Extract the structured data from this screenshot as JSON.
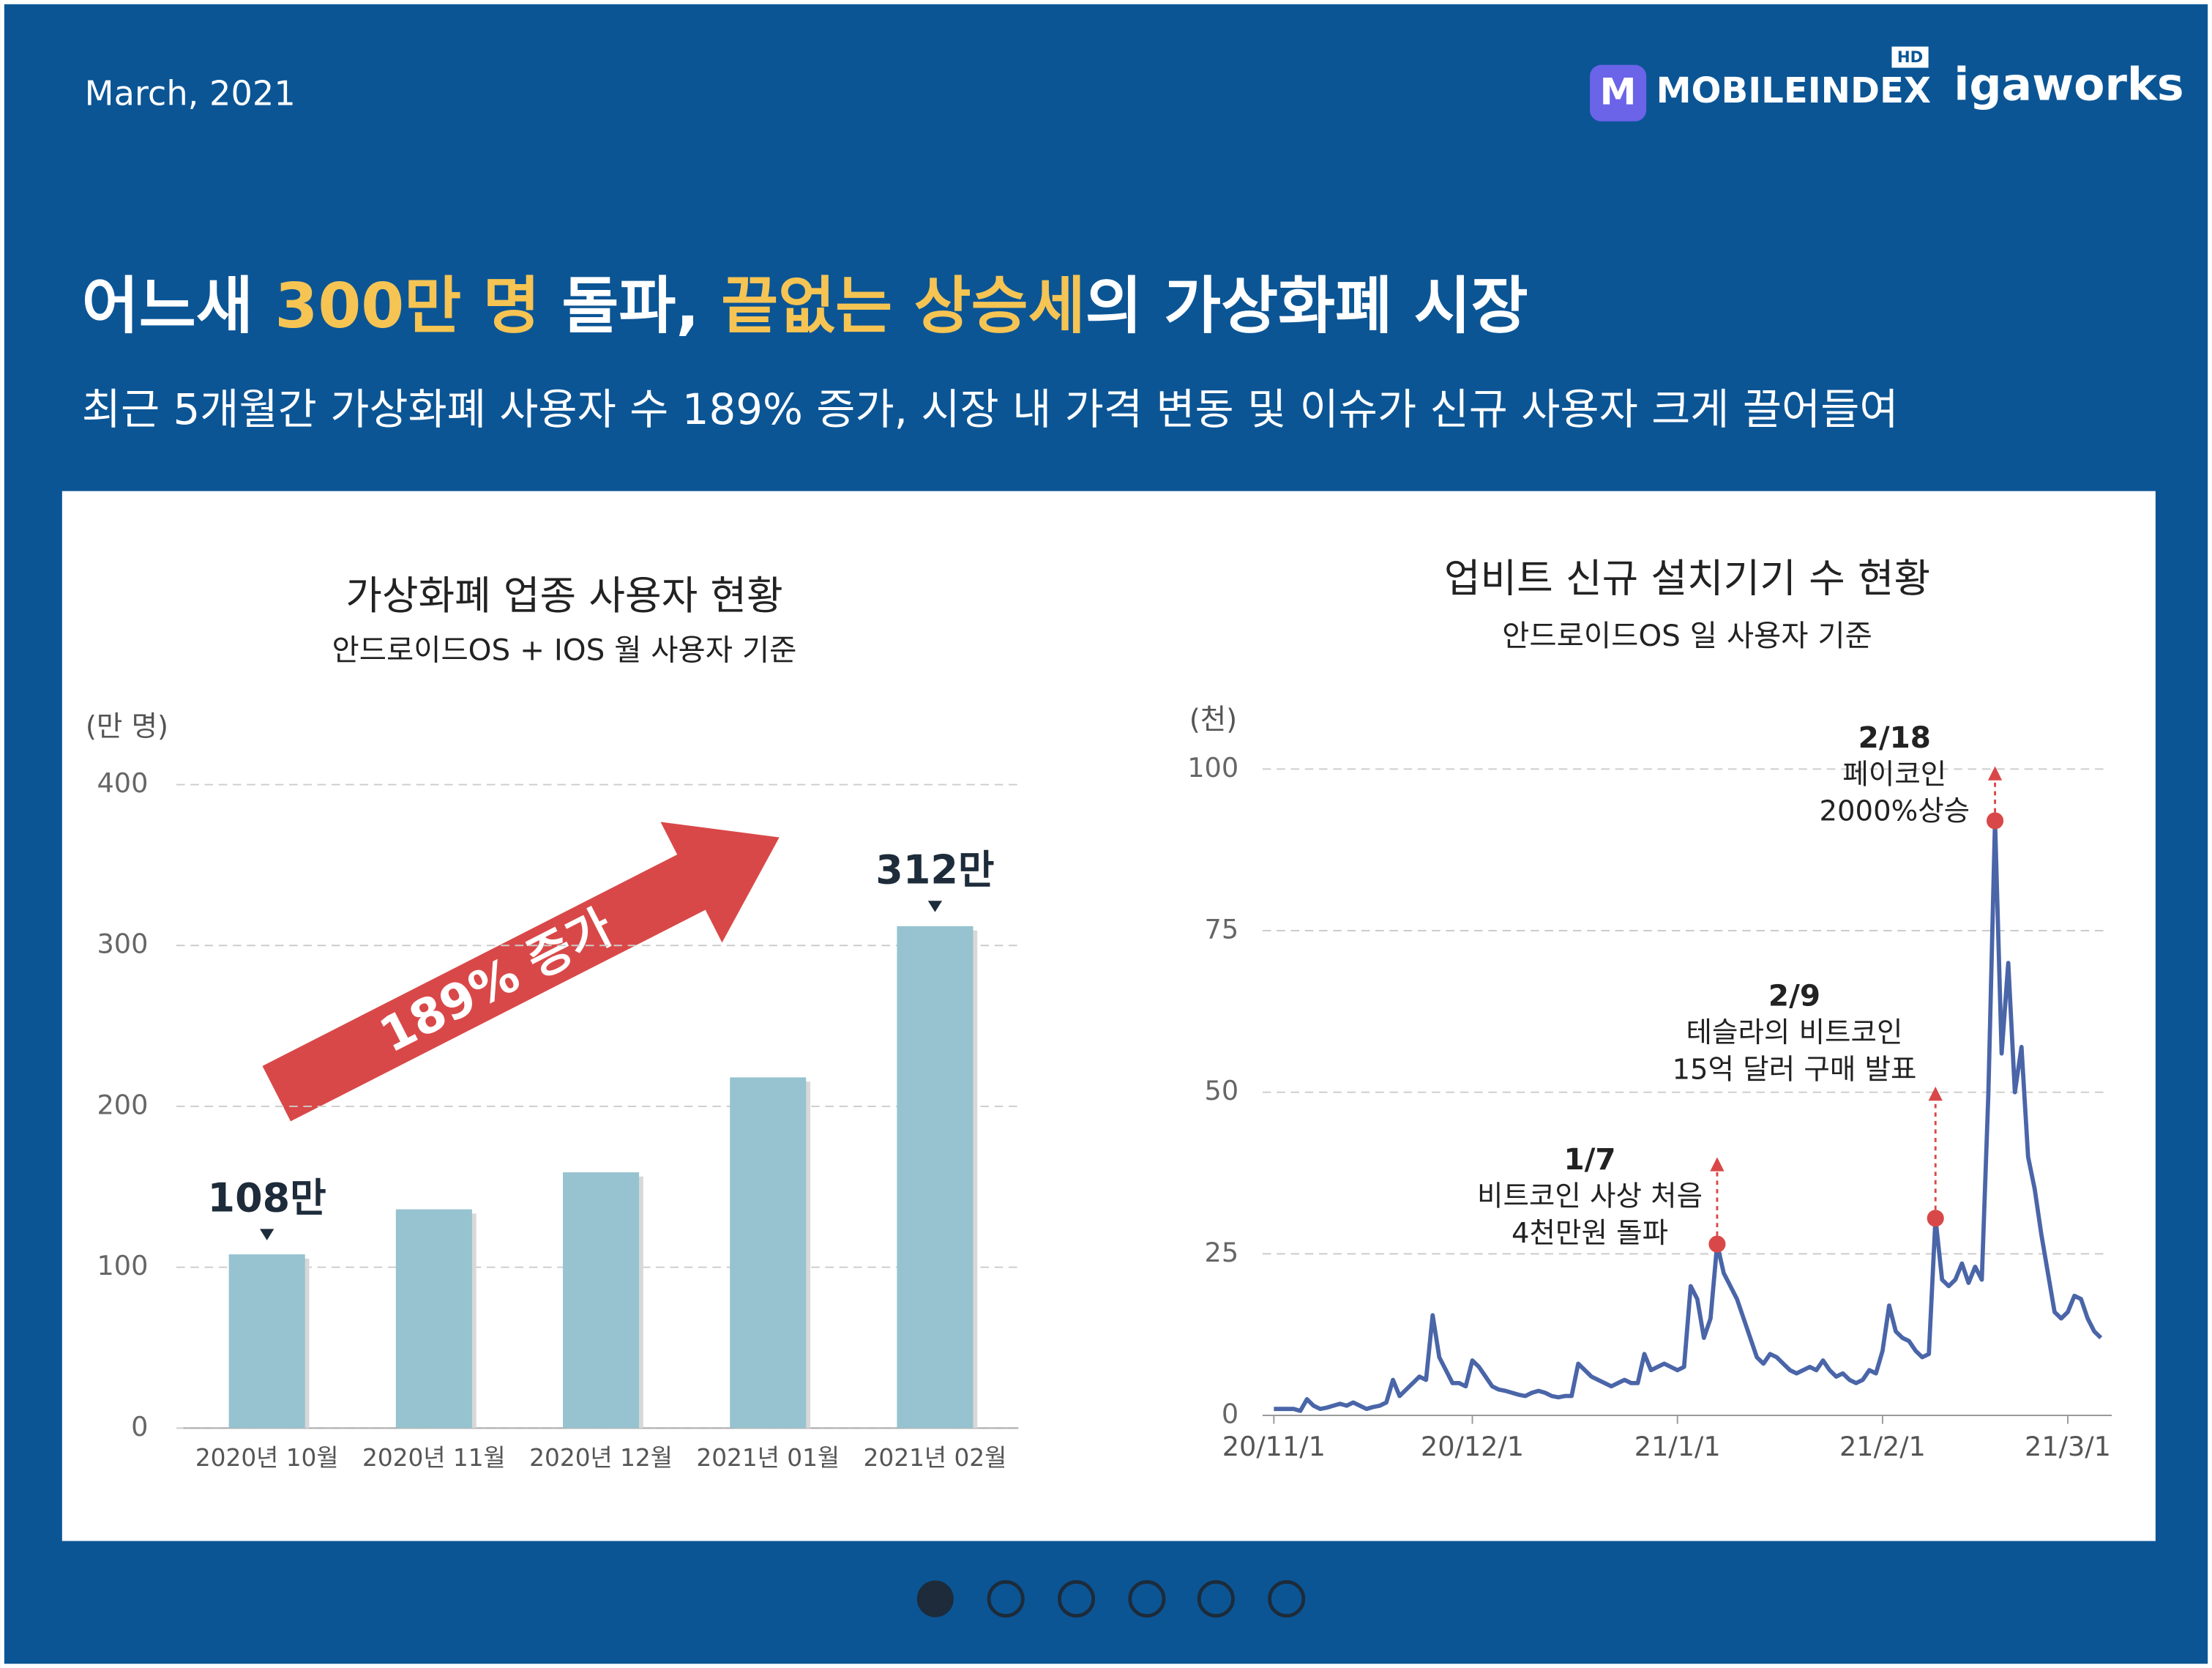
{
  "header": {
    "date": "March, 2021",
    "logo": {
      "icon": "M",
      "name": "MOBILEINDEX",
      "badge": "HD",
      "company": "igaworks"
    },
    "title": [
      "어느새 ",
      "300만 명",
      " 돌파, ",
      "끝없는 상승세",
      "의 가상화폐 시장"
    ],
    "subtitle": "최근 5개월간 가상화폐 사용자 수 189% 증가, 시장 내 가격 변동 및 이슈가 신규 사용자 크게 끌어들여"
  },
  "chart_data": [
    {
      "type": "bar",
      "title": "가상화폐 업종 사용자 현황",
      "subtitle": "안드로이드OS + IOS 월 사용자 기준",
      "y_unit": "(만 명)",
      "categories": [
        "2020년 10월",
        "2020년 11월",
        "2020년 12월",
        "2021년 01월",
        "2021년 02월"
      ],
      "values": [
        108,
        136,
        159,
        218,
        312
      ],
      "value_labels": [
        "108만",
        null,
        null,
        null,
        "312만"
      ],
      "color": "#96c3cf",
      "ylim": [
        0,
        400
      ],
      "yticks": [
        0,
        100,
        200,
        300,
        400
      ],
      "grid": true,
      "annotation": "189% 증가"
    },
    {
      "type": "line",
      "title": "업비트 신규 설치기기 수 현황",
      "subtitle": "안드로이드OS 일 사용자 기준",
      "y_unit": "(천)",
      "color": "#4a65a8",
      "x": [
        "20/11/1",
        "20/11/2",
        "20/11/3",
        "20/11/4",
        "20/11/5",
        "20/11/6",
        "20/11/7",
        "20/11/8",
        "20/11/9",
        "20/11/10",
        "20/11/11",
        "20/11/12",
        "20/11/13",
        "20/11/14",
        "20/11/15",
        "20/11/16",
        "20/11/17",
        "20/11/18",
        "20/11/19",
        "20/11/20",
        "20/11/21",
        "20/11/22",
        "20/11/23",
        "20/11/24",
        "20/11/25",
        "20/11/26",
        "20/11/27",
        "20/11/28",
        "20/11/29",
        "20/11/30",
        "20/12/1",
        "20/12/2",
        "20/12/3",
        "20/12/4",
        "20/12/5",
        "20/12/6",
        "20/12/7",
        "20/12/8",
        "20/12/9",
        "20/12/10",
        "20/12/11",
        "20/12/12",
        "20/12/13",
        "20/12/14",
        "20/12/15",
        "20/12/16",
        "20/12/17",
        "20/12/18",
        "20/12/19",
        "20/12/20",
        "20/12/21",
        "20/12/22",
        "20/12/23",
        "20/12/24",
        "20/12/25",
        "20/12/26",
        "20/12/27",
        "20/12/28",
        "20/12/29",
        "20/12/30",
        "20/12/31",
        "21/1/1",
        "21/1/2",
        "21/1/3",
        "21/1/4",
        "21/1/5",
        "21/1/6",
        "21/1/7",
        "21/1/8",
        "21/1/9",
        "21/1/10",
        "21/1/11",
        "21/1/12",
        "21/1/13",
        "21/1/14",
        "21/1/15",
        "21/1/16",
        "21/1/17",
        "21/1/18",
        "21/1/19",
        "21/1/20",
        "21/1/21",
        "21/1/22",
        "21/1/23",
        "21/1/24",
        "21/1/25",
        "21/1/26",
        "21/1/27",
        "21/1/28",
        "21/1/29",
        "21/1/30",
        "21/1/31",
        "21/2/1",
        "21/2/2",
        "21/2/3",
        "21/2/4",
        "21/2/5",
        "21/2/6",
        "21/2/7",
        "21/2/8",
        "21/2/9",
        "21/2/10",
        "21/2/11",
        "21/2/12",
        "21/2/13",
        "21/2/14",
        "21/2/15",
        "21/2/16",
        "21/2/17",
        "21/2/18",
        "21/2/19",
        "21/2/20",
        "21/2/21",
        "21/2/22",
        "21/2/23",
        "21/2/24",
        "21/2/25",
        "21/2/26",
        "21/2/27",
        "21/2/28",
        "21/3/1",
        "21/3/2",
        "21/3/3",
        "21/3/4",
        "21/3/5",
        "21/3/6"
      ],
      "values": [
        1,
        1,
        1,
        1,
        0.7,
        2.5,
        1.5,
        1,
        1.2,
        1.5,
        1.8,
        1.5,
        2,
        1.5,
        1,
        1.3,
        1.5,
        2,
        5.5,
        3,
        4,
        5,
        6,
        5.5,
        15.5,
        9,
        7,
        5,
        5,
        4.5,
        8.5,
        7.5,
        6,
        4.5,
        4,
        3.8,
        3.5,
        3.2,
        3,
        3.5,
        3.8,
        3.5,
        3,
        2.8,
        3,
        3,
        8,
        7,
        6,
        5.5,
        5,
        4.5,
        5,
        5.5,
        5,
        5,
        9.5,
        7,
        7.5,
        8,
        7.5,
        7,
        7.5,
        20,
        18,
        12,
        15,
        26.5,
        22,
        20,
        18,
        15,
        12,
        9,
        8,
        9.5,
        9,
        8,
        7,
        6.5,
        7,
        7.5,
        7,
        8.5,
        7,
        6,
        6.5,
        5.5,
        5,
        5.5,
        7,
        6.5,
        10,
        17,
        13,
        12,
        11.5,
        10,
        9,
        9.5,
        30.5,
        21,
        20,
        21,
        23.5,
        20.5,
        23,
        21,
        50,
        92,
        56,
        70,
        50,
        57,
        40,
        35,
        28,
        22,
        16,
        15,
        16,
        18.5,
        18,
        15,
        13,
        12
      ],
      "xticks": [
        "20/11/1",
        "20/12/1",
        "21/1/1",
        "21/2/1",
        "21/3/1"
      ],
      "ylim": [
        0,
        100
      ],
      "yticks": [
        0,
        25,
        50,
        75,
        100
      ],
      "grid": true,
      "annotations": [
        {
          "x": "21/1/7",
          "lines": [
            "1/7",
            "비트코인 사상 처음",
            "4천만원 돌파"
          ]
        },
        {
          "x": "21/2/9",
          "lines": [
            "2/9",
            "테슬라의 비트코인",
            "15억 달러 구매 발표"
          ]
        },
        {
          "x": "21/2/18",
          "lines": [
            "2/18",
            "페이코인",
            "2000%상승"
          ]
        }
      ]
    }
  ]
}
